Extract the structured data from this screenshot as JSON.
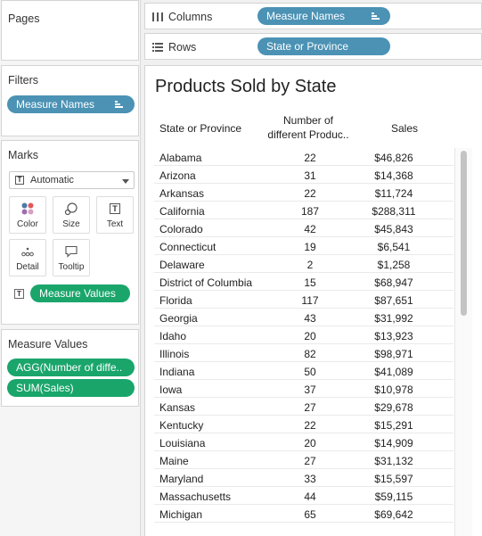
{
  "sidebar": {
    "pages_title": "Pages",
    "filters_title": "Filters",
    "filter_pill": "Measure Names",
    "marks_title": "Marks",
    "marks_type": "Automatic",
    "mark_buttons": [
      "Color",
      "Size",
      "Text",
      "Detail",
      "Tooltip"
    ],
    "marks_text_pill": "Measure Values",
    "measure_values_title": "Measure Values",
    "measure_pills": [
      "AGG(Number of diffe..",
      "SUM(Sales)"
    ]
  },
  "shelves": {
    "columns_label": "Columns",
    "columns_pill": "Measure Names",
    "rows_label": "Rows",
    "rows_pill": "State or Province"
  },
  "view": {
    "title": "Products Sold by State",
    "col_state": "State or Province",
    "col_number_line1": "Number of",
    "col_number_line2": "different Produc..",
    "col_sales": "Sales",
    "rows": [
      {
        "state": "Alabama",
        "num": "22",
        "sales": "$46,826"
      },
      {
        "state": "Arizona",
        "num": "31",
        "sales": "$14,368"
      },
      {
        "state": "Arkansas",
        "num": "22",
        "sales": "$11,724"
      },
      {
        "state": "California",
        "num": "187",
        "sales": "$288,311"
      },
      {
        "state": "Colorado",
        "num": "42",
        "sales": "$45,843"
      },
      {
        "state": "Connecticut",
        "num": "19",
        "sales": "$6,541"
      },
      {
        "state": "Delaware",
        "num": "2",
        "sales": "$1,258"
      },
      {
        "state": "District of Columbia",
        "num": "15",
        "sales": "$68,947"
      },
      {
        "state": "Florida",
        "num": "117",
        "sales": "$87,651"
      },
      {
        "state": "Georgia",
        "num": "43",
        "sales": "$31,992"
      },
      {
        "state": "Idaho",
        "num": "20",
        "sales": "$13,923"
      },
      {
        "state": "Illinois",
        "num": "82",
        "sales": "$98,971"
      },
      {
        "state": "Indiana",
        "num": "50",
        "sales": "$41,089"
      },
      {
        "state": "Iowa",
        "num": "37",
        "sales": "$10,978"
      },
      {
        "state": "Kansas",
        "num": "27",
        "sales": "$29,678"
      },
      {
        "state": "Kentucky",
        "num": "22",
        "sales": "$15,291"
      },
      {
        "state": "Louisiana",
        "num": "20",
        "sales": "$14,909"
      },
      {
        "state": "Maine",
        "num": "27",
        "sales": "$31,132"
      },
      {
        "state": "Maryland",
        "num": "33",
        "sales": "$15,597"
      },
      {
        "state": "Massachusetts",
        "num": "44",
        "sales": "$59,115"
      },
      {
        "state": "Michigan",
        "num": "65",
        "sales": "$69,642"
      }
    ]
  },
  "colors": {
    "dimension_pill": "#4b92b4",
    "measure_pill": "#1aa56b"
  },
  "icons": {
    "columns": "columns-icon",
    "rows": "rows-icon",
    "sort": "sort-icon",
    "color": "color-dots-icon",
    "size": "size-icon",
    "text": "text-icon",
    "detail": "detail-dots-icon",
    "tooltip": "speech-bubble-icon"
  }
}
